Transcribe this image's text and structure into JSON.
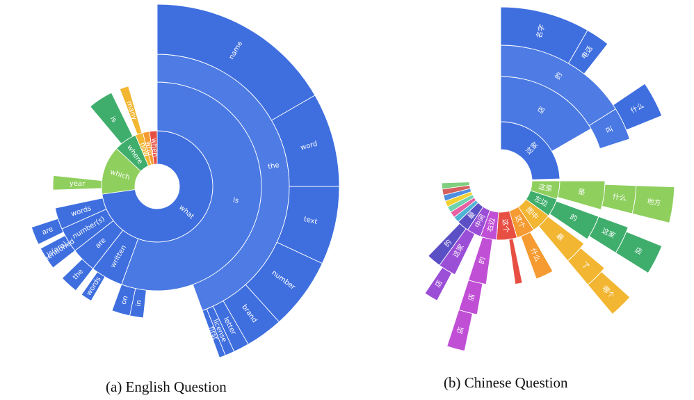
{
  "chart_data": [
    {
      "type": "sunburst",
      "caption": "(a)  English Question",
      "segments": [
        {
          "label": "what",
          "ring": 1,
          "a0": 0,
          "a1": 262,
          "color": "#3f6fdf"
        },
        {
          "label": "which",
          "ring": 1,
          "a0": 262,
          "a1": 313,
          "color": "#8fcf5e"
        },
        {
          "label": "where",
          "ring": 1,
          "a0": 313,
          "a1": 337,
          "color": "#3fae6c"
        },
        {
          "label": "how",
          "ring": 1,
          "a0": 337,
          "a1": 345,
          "color": "#f2b632"
        },
        {
          "label": "who",
          "ring": 1,
          "a0": 345,
          "a1": 352,
          "color": "#f59b31"
        },
        {
          "label": "when",
          "ring": 1,
          "a0": 352,
          "a1": 360,
          "color": "#e84f43"
        },
        {
          "label": "is",
          "ring": 2,
          "a0": 0,
          "a1": 200,
          "color": "#4a79e3"
        },
        {
          "label": "written",
          "ring": 2,
          "a0": 200,
          "a1": 218,
          "color": "#3f6fdf"
        },
        {
          "label": "are",
          "ring": 2,
          "a0": 218,
          "a1": 232,
          "color": "#3f6fdf"
        },
        {
          "label": "number(s)",
          "ring": 2,
          "a0": 232,
          "a1": 246,
          "color": "#3f6fdf"
        },
        {
          "label": "words",
          "ring": 2,
          "a0": 246,
          "a1": 258,
          "color": "#3f6fdf"
        },
        {
          "label": "year",
          "ring": 2,
          "a0": 268,
          "a1": 276,
          "color": "#8fcf5e"
        },
        {
          "label": "is",
          "ring": 2,
          "a0": 320,
          "a1": 334,
          "color": "#3fae6c"
        },
        {
          "label": "many",
          "ring": 2,
          "a0": 339,
          "a1": 344,
          "color": "#f2b632"
        },
        {
          "label": "the",
          "ring": 3,
          "a0": 0,
          "a1": 160,
          "color": "#4e7ce4"
        },
        {
          "label": "in",
          "ring": 3,
          "a0": 186,
          "a1": 192,
          "color": "#3f6fdf"
        },
        {
          "label": "on",
          "ring": 3,
          "a0": 192,
          "a1": 200,
          "color": "#3f6fdf"
        },
        {
          "label": "the",
          "ring": 3,
          "a0": 218,
          "a1": 226,
          "color": "#3f6fdf"
        },
        {
          "label": "words",
          "ring": 3,
          "a0": 210,
          "a1": 215,
          "color": "#3f6fdf"
        },
        {
          "label": "is(are)",
          "ring": 3,
          "a0": 234,
          "a1": 242,
          "color": "#3f6fdf"
        },
        {
          "label": "are",
          "ring": 3,
          "a0": 244,
          "a1": 252,
          "color": "#3f6fdf"
        },
        {
          "label": "mentioned",
          "ring": 3,
          "a0": 232,
          "a1": 242,
          "color": "#3f6fdf"
        },
        {
          "label": "name",
          "ring": 4,
          "a0": 0,
          "a1": 60,
          "color": "#3f6fdf"
        },
        {
          "label": "word",
          "ring": 4,
          "a0": 60,
          "a1": 90,
          "color": "#3f6fdf"
        },
        {
          "label": "text",
          "ring": 4,
          "a0": 90,
          "a1": 115,
          "color": "#3f6fdf"
        },
        {
          "label": "number",
          "ring": 4,
          "a0": 115,
          "a1": 138,
          "color": "#3f6fdf"
        },
        {
          "label": "brand",
          "ring": 4,
          "a0": 138,
          "a1": 150,
          "color": "#3f6fdf"
        },
        {
          "label": "letter",
          "ring": 4,
          "a0": 150,
          "a1": 155,
          "color": "#3f6fdf"
        },
        {
          "label": "license",
          "ring": 4,
          "a0": 155,
          "a1": 158,
          "color": "#3f6fdf"
        },
        {
          "label": "first",
          "ring": 4,
          "a0": 158,
          "a1": 160,
          "color": "#3f6fdf"
        }
      ]
    },
    {
      "type": "sunburst",
      "caption": "(b)  Chinese Question",
      "segments": [
        {
          "label": "这家",
          "ring": 1,
          "a0": 0,
          "a1": 88,
          "color": "#3f6fdf"
        },
        {
          "label": "这里",
          "ring": 1,
          "a0": 90,
          "a1": 108,
          "color": "#8fcf5e"
        },
        {
          "label": "左边",
          "ring": 1,
          "a0": 108,
          "a1": 126,
          "color": "#3fae6c"
        },
        {
          "label": "图中",
          "ring": 1,
          "a0": 126,
          "a1": 146,
          "color": "#f2b632"
        },
        {
          "label": "这个",
          "ring": 1,
          "a0": 146,
          "a1": 164,
          "color": "#f59b31"
        },
        {
          "label": "这个",
          "ring": 1,
          "a0": 164,
          "a1": 184,
          "color": "#e84f43"
        },
        {
          "label": "右边",
          "ring": 1,
          "a0": 184,
          "a1": 200,
          "color": "#c04fd6"
        },
        {
          "label": "中间",
          "ring": 1,
          "a0": 200,
          "a1": 214,
          "color": "#9b4fd6"
        },
        {
          "label": "最",
          "ring": 1,
          "a0": 214,
          "a1": 226,
          "color": "#5b4fc6"
        },
        {
          "label": "",
          "ring": 1,
          "a0": 226,
          "a1": 232,
          "color": "#4fb3d6"
        },
        {
          "label": "",
          "ring": 1,
          "a0": 232,
          "a1": 238,
          "color": "#e85fa3"
        },
        {
          "label": "",
          "ring": 1,
          "a0": 238,
          "a1": 244,
          "color": "#6fd3b0"
        },
        {
          "label": "",
          "ring": 1,
          "a0": 244,
          "a1": 250,
          "color": "#f2d032"
        },
        {
          "label": "",
          "ring": 1,
          "a0": 250,
          "a1": 256,
          "color": "#4f8fe0"
        },
        {
          "label": "",
          "ring": 1,
          "a0": 256,
          "a1": 262,
          "color": "#d65f5f"
        },
        {
          "label": "",
          "ring": 1,
          "a0": 262,
          "a1": 268,
          "color": "#7fcf7f"
        },
        {
          "label": "店",
          "ring": 2,
          "a0": 0,
          "a1": 60,
          "color": "#4a79e3"
        },
        {
          "label": "是",
          "ring": 2,
          "a0": 90,
          "a1": 106,
          "color": "#8fcf5e"
        },
        {
          "label": "的",
          "ring": 2,
          "a0": 110,
          "a1": 124,
          "color": "#3fae6c"
        },
        {
          "label": "最",
          "ring": 2,
          "a0": 127,
          "a1": 140,
          "color": "#f2b632"
        },
        {
          "label": "什么",
          "ring": 2,
          "a0": 150,
          "a1": 160,
          "color": "#f59b31"
        },
        {
          "label": "",
          "ring": 2,
          "a0": 168,
          "a1": 172,
          "color": "#e84f43"
        },
        {
          "label": "的",
          "ring": 2,
          "a0": 188,
          "a1": 198,
          "color": "#c04fd6"
        },
        {
          "label": "这家",
          "ring": 2,
          "a0": 206,
          "a1": 216,
          "color": "#9b4fd6"
        },
        {
          "label": "的",
          "ring": 2,
          "a0": 216,
          "a1": 224,
          "color": "#5b4fc6"
        },
        {
          "label": "的",
          "ring": 3,
          "a0": 0,
          "a1": 58,
          "color": "#4e7ce4"
        },
        {
          "label": "这家",
          "ring": 3,
          "a0": 110,
          "a1": 122,
          "color": "#3fae6c"
        },
        {
          "label": "了",
          "ring": 3,
          "a0": 130,
          "a1": 140,
          "color": "#f2b632"
        },
        {
          "label": "叫",
          "ring": 3,
          "a0": 58,
          "a1": 72,
          "color": "#4a79e3"
        },
        {
          "label": "什么",
          "ring": 3,
          "a0": 92,
          "a1": 104,
          "color": "#8fcf5e"
        },
        {
          "label": "店",
          "ring": 3,
          "a0": 190,
          "a1": 198,
          "color": "#c04fd6"
        },
        {
          "label": "店",
          "ring": 3,
          "a0": 208,
          "a1": 214,
          "color": "#9b4fd6"
        },
        {
          "label": "名字",
          "ring": 4,
          "a0": 0,
          "a1": 30,
          "color": "#3f6fdf"
        },
        {
          "label": "电话",
          "ring": 4,
          "a0": 30,
          "a1": 38,
          "color": "#3f6fdf"
        },
        {
          "label": "什么",
          "ring": 4,
          "a0": 56,
          "a1": 68,
          "color": "#3f6fdf"
        },
        {
          "label": "地方",
          "ring": 4,
          "a0": 92,
          "a1": 104,
          "color": "#8fcf5e"
        },
        {
          "label": "店",
          "ring": 4,
          "a0": 112,
          "a1": 122,
          "color": "#3fae6c"
        },
        {
          "label": "店",
          "ring": 4,
          "a0": 192,
          "a1": 198,
          "color": "#c04fd6"
        },
        {
          "label": "哪个",
          "ring": 4,
          "a0": 132,
          "a1": 140,
          "color": "#f2b632"
        }
      ]
    }
  ]
}
